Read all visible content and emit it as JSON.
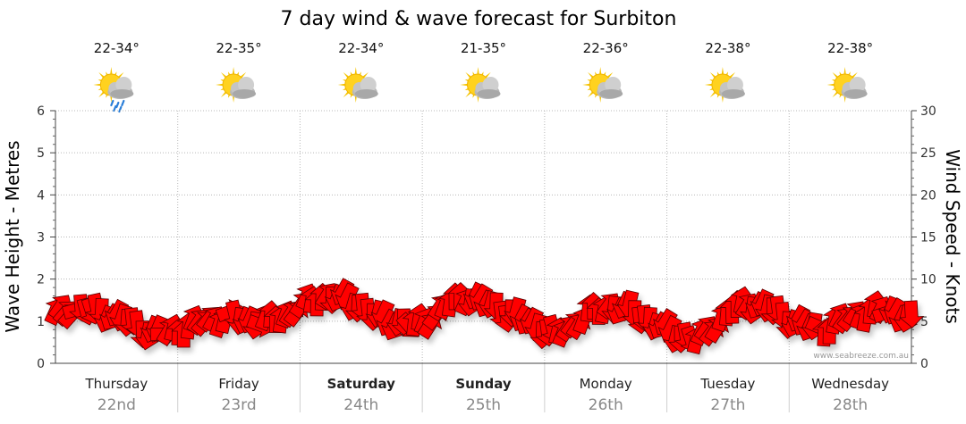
{
  "chart_data": {
    "type": "line",
    "title": "7 day wind & wave forecast for Surbiton",
    "ylabel_left": "Wave Height - Metres",
    "ylabel_right": "Wind Speed - Knots",
    "ylim_left": [
      0,
      6
    ],
    "ylim_right": [
      0,
      30
    ],
    "yticks_left": [
      "0",
      "1",
      "2",
      "3",
      "4",
      "5",
      "6"
    ],
    "yticks_right": [
      "0",
      "5",
      "10",
      "15",
      "20",
      "25",
      "30"
    ],
    "grid": true,
    "credit": "www.seabreeze.com.au",
    "days": [
      {
        "name": "Thursday",
        "date": "22nd",
        "temp": "22-34°",
        "icon": "sun-cloud-rain-icon",
        "bold": false
      },
      {
        "name": "Friday",
        "date": "23rd",
        "temp": "22-35°",
        "icon": "sun-cloud-icon",
        "bold": false
      },
      {
        "name": "Saturday",
        "date": "24th",
        "temp": "22-34°",
        "icon": "sun-cloud-icon",
        "bold": true
      },
      {
        "name": "Sunday",
        "date": "25th",
        "temp": "21-35°",
        "icon": "sun-cloud-icon",
        "bold": true
      },
      {
        "name": "Monday",
        "date": "26th",
        "temp": "22-36°",
        "icon": "sun-cloud-icon",
        "bold": false
      },
      {
        "name": "Tuesday",
        "date": "27th",
        "temp": "22-38°",
        "icon": "sun-cloud-icon",
        "bold": false
      },
      {
        "name": "Wednesday",
        "date": "28th",
        "temp": "22-38°",
        "icon": "sun-cloud-icon",
        "bold": false
      }
    ],
    "wind_knots_anchors": [
      5.8,
      6.5,
      6.2,
      6.0,
      5.0,
      4.0,
      3.5,
      4.0,
      4.8,
      5.3,
      5.5,
      5.0,
      5.0,
      5.8,
      7.0,
      8.0,
      7.8,
      7.0,
      5.5,
      5.0,
      4.5,
      5.3,
      7.0,
      8.0,
      7.3,
      6.3,
      5.5,
      4.5,
      3.3,
      4.5,
      6.0,
      6.8,
      6.5,
      5.5,
      4.3,
      3.3,
      2.8,
      4.5,
      6.5,
      7.2,
      6.5,
      5.5,
      4.5,
      4.0,
      5.0,
      5.8,
      6.2,
      6.3,
      5.2
    ],
    "wind_arrow_color": "#ff0000"
  }
}
